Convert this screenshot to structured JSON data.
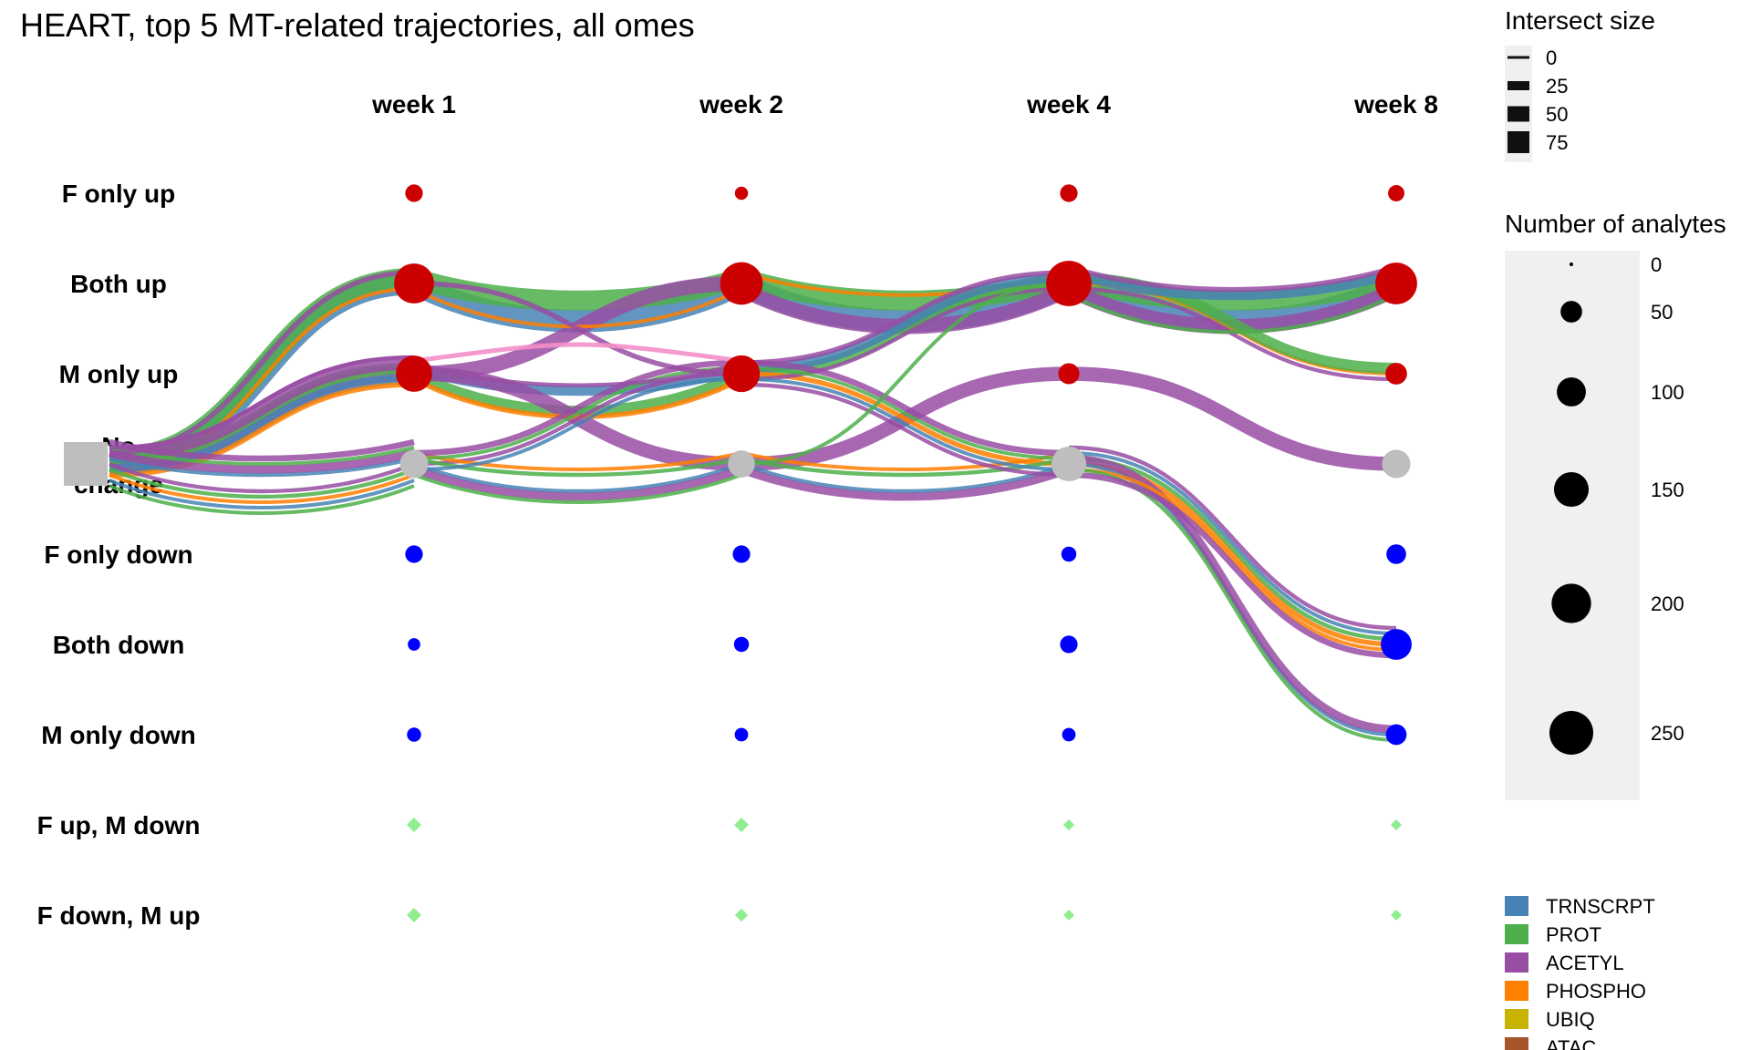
{
  "chart_data": {
    "type": "alluvial",
    "title": "HEART, top 5 MT-related trajectories, all omes",
    "timepoints": [
      "week 1",
      "week 2",
      "week 4",
      "week 8"
    ],
    "states": [
      "F only up",
      "Both up",
      "M only up",
      "No change",
      "F only down",
      "Both down",
      "M only down",
      "F up, M down",
      "F down, M up"
    ],
    "state_colors": {
      "F only up": "#CC0000",
      "Both up": "#CC0000",
      "M only up": "#CC0000",
      "No change": "#BEBEBE",
      "F only down": "#0000FF",
      "Both down": "#0000FF",
      "M only down": "#0000FF",
      "F up, M down": "#90EE90",
      "F down, M up": "#90EE90"
    },
    "node_sizes": [
      {
        "timepoint": "week 1",
        "values": [
          30,
          205,
          165,
          95,
          30,
          12,
          17,
          7,
          7
        ]
      },
      {
        "timepoint": "week 2",
        "values": [
          14,
          235,
          170,
          85,
          30,
          20,
          15,
          7,
          5
        ]
      },
      {
        "timepoint": "week 4",
        "values": [
          30,
          270,
          47,
          150,
          20,
          30,
          15,
          3,
          2
        ]
      },
      {
        "timepoint": "week 8",
        "values": [
          25,
          225,
          50,
          95,
          40,
          115,
          45,
          1,
          2
        ]
      }
    ],
    "ome_colors": {
      "TRNSCRPT": "#4682B4",
      "PROT": "#4DAF4A",
      "ACETYL": "#984EA3",
      "PHOSPHO": "#FF7F00",
      "UBIQ": "#C8B400",
      "ATAC": "#A65628"
    },
    "trajectories": [
      {
        "ome": "TRNSCRPT",
        "path": [
          "No change",
          "Both up",
          "Both up",
          "Both up",
          "Both up"
        ],
        "size": 45
      },
      {
        "ome": "PROT",
        "path": [
          "No change",
          "Both up",
          "Both up",
          "Both up",
          "Both up"
        ],
        "size": 40
      },
      {
        "ome": "ACETYL",
        "path": [
          "No change",
          "M only up",
          "Both up",
          "Both up",
          "Both up"
        ],
        "size": 30
      },
      {
        "ome": "PHOSPHO",
        "path": [
          "No change",
          "Both up",
          "Both up",
          "Both up",
          "M only up"
        ],
        "size": 6
      },
      {
        "ome": "PROT",
        "path": [
          "No change",
          "M only up",
          "M only up",
          "Both up",
          "M only up"
        ],
        "size": 22
      },
      {
        "ome": "TRNSCRPT",
        "path": [
          "No change",
          "M only up",
          "M only up",
          "Both up",
          "Both up"
        ],
        "size": 20
      },
      {
        "ome": "ACETYL",
        "path": [
          "No change",
          "M only up",
          "No change",
          "M only up",
          "No change"
        ],
        "size": 28
      },
      {
        "ome": "PHOSPHO",
        "path": [
          "No change",
          "M only up",
          "M only up",
          "No change",
          "Both down"
        ],
        "size": 10
      },
      {
        "ome": "ACETYL",
        "path": [
          "No change",
          "No change",
          "M only up",
          "Both up",
          "M only up"
        ],
        "size": 8
      },
      {
        "ome": "TRNSCRPT",
        "path": [
          "No change",
          "No change",
          "No change",
          "No change",
          "M only down"
        ],
        "size": 8
      },
      {
        "ome": "PROT",
        "path": [
          "No change",
          "No change",
          "No change",
          "No change",
          "Both down"
        ],
        "size": 8
      },
      {
        "ome": "ACETYL",
        "path": [
          "No change",
          "No change",
          "No change",
          "No change",
          "M only down"
        ],
        "size": 16
      },
      {
        "ome": "PHOSPHO",
        "path": [
          "No change",
          "No change",
          "No change",
          "No change",
          "Both down"
        ],
        "size": 6
      },
      {
        "ome": "PROT",
        "path": [
          "No change",
          "No change",
          "M only up",
          "No change",
          "M only down"
        ],
        "size": 6
      },
      {
        "ome": "TRNSCRPT",
        "path": [
          "No change",
          "No change",
          "M only up",
          "No change",
          "Both down"
        ],
        "size": 7
      },
      {
        "ome": "ACETYL",
        "path": [
          "No change",
          "No change",
          "M only up",
          "No change",
          "Both down"
        ],
        "size": 12
      },
      {
        "ome": "ACETYL",
        "path": [
          "No change",
          "M only up",
          "M only up",
          "No change",
          "Both down"
        ],
        "size": 8
      },
      {
        "ome": "PROT",
        "path": [
          "No change",
          "No change",
          "No change",
          "Both up",
          "Both up"
        ],
        "size": 6
      },
      {
        "ome": "ACETYL",
        "path": [
          "No change",
          "Both up",
          "M only up",
          "Both up",
          "Both up"
        ],
        "size": 10
      }
    ],
    "pink_link": {
      "color": "#F48FC6",
      "from": [
        "week 1",
        "M only up"
      ],
      "to": [
        "week 2",
        "M only up"
      ],
      "size": 5
    },
    "legend_intersect": {
      "title": "Intersect size",
      "labels": [
        "0",
        "25",
        "50",
        "75"
      ]
    },
    "legend_analytes": {
      "title": "Number of analytes",
      "labels": [
        "0",
        "50",
        "100",
        "150",
        "200",
        "250"
      ],
      "values": [
        0,
        50,
        100,
        150,
        200,
        250
      ]
    },
    "legend_omes": [
      "TRNSCRPT",
      "PROT",
      "ACETYL",
      "PHOSPHO",
      "UBIQ",
      "ATAC"
    ]
  }
}
